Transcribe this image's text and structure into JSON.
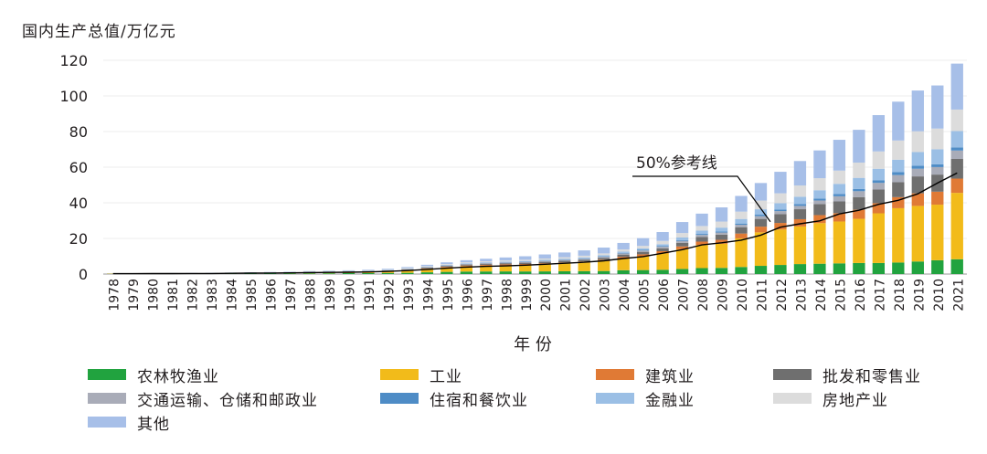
{
  "chart_data": {
    "type": "bar",
    "stacked": true,
    "title": "",
    "ylabel": "国内生产总值/万亿元",
    "xlabel": "年 份",
    "ylim": [
      0,
      120
    ],
    "yticks": [
      0,
      20,
      40,
      60,
      80,
      100,
      120
    ],
    "grid": true,
    "legend_position": "bottom",
    "categories": [
      "1978",
      "1979",
      "1980",
      "1981",
      "1982",
      "1983",
      "1984",
      "1985",
      "1986",
      "1987",
      "1988",
      "1989",
      "1990",
      "1991",
      "1992",
      "1993",
      "1994",
      "1995",
      "1996",
      "1997",
      "1998",
      "1999",
      "2000",
      "2001",
      "2002",
      "2003",
      "2004",
      "2005",
      "2006",
      "2007",
      "2008",
      "2009",
      "2010",
      "2011",
      "2012",
      "2013",
      "2014",
      "2015",
      "2016",
      "2017",
      "2018",
      "2019",
      "2010",
      "2021"
    ],
    "series": [
      {
        "name": "农林牧渔业",
        "color": "#21a33f",
        "values": [
          0.1,
          0.13,
          0.14,
          0.16,
          0.18,
          0.2,
          0.23,
          0.26,
          0.28,
          0.32,
          0.38,
          0.42,
          0.51,
          0.53,
          0.59,
          0.7,
          0.98,
          1.22,
          1.4,
          1.45,
          1.48,
          1.46,
          1.49,
          1.56,
          1.63,
          1.7,
          2.14,
          2.24,
          2.4,
          2.87,
          3.34,
          3.46,
          3.97,
          4.6,
          5.1,
          5.6,
          5.8,
          6.0,
          6.2,
          6.2,
          6.47,
          7.05,
          7.75,
          8.31
        ]
      },
      {
        "name": "工业",
        "color": "#f2bb1a",
        "values": [
          0.16,
          0.18,
          0.2,
          0.21,
          0.22,
          0.24,
          0.28,
          0.34,
          0.39,
          0.46,
          0.58,
          0.65,
          0.69,
          0.81,
          1.03,
          1.45,
          1.95,
          2.46,
          2.91,
          3.24,
          3.4,
          3.61,
          4.0,
          4.35,
          4.75,
          5.5,
          6.53,
          7.71,
          9.13,
          11.05,
          13.01,
          13.51,
          16.07,
          18.8,
          19.9,
          21.1,
          22.8,
          23.5,
          24.8,
          27.9,
          30.5,
          31.2,
          31.2,
          37.26
        ]
      },
      {
        "name": "建筑业",
        "color": "#e07a35",
        "values": [
          0.01,
          0.01,
          0.02,
          0.02,
          0.02,
          0.03,
          0.04,
          0.04,
          0.05,
          0.07,
          0.08,
          0.08,
          0.08,
          0.1,
          0.14,
          0.23,
          0.29,
          0.38,
          0.45,
          0.49,
          0.53,
          0.56,
          0.59,
          0.64,
          0.71,
          0.84,
          1.02,
          1.12,
          1.29,
          1.59,
          1.86,
          2.24,
          2.7,
          3.21,
          3.68,
          4.09,
          4.49,
          4.66,
          5.1,
          5.66,
          6.2,
          7.07,
          7.29,
          8.01
        ]
      },
      {
        "name": "批发和零售业",
        "color": "#6f6f6f",
        "values": [
          0.03,
          0.03,
          0.03,
          0.04,
          0.04,
          0.04,
          0.05,
          0.09,
          0.1,
          0.12,
          0.15,
          0.17,
          0.17,
          0.2,
          0.24,
          0.3,
          0.39,
          0.49,
          0.56,
          0.62,
          0.68,
          0.72,
          0.79,
          0.87,
          0.94,
          1.06,
          1.23,
          1.41,
          1.65,
          2.04,
          2.62,
          2.92,
          3.57,
          4.35,
          4.95,
          5.6,
          6.2,
          6.6,
          7.1,
          7.7,
          8.4,
          9.5,
          9.6,
          11.04
        ]
      },
      {
        "name": "交通运输、仓储和邮政业",
        "color": "#a9acb8",
        "values": [
          0.02,
          0.02,
          0.02,
          0.02,
          0.03,
          0.03,
          0.04,
          0.04,
          0.05,
          0.05,
          0.07,
          0.09,
          0.11,
          0.12,
          0.14,
          0.18,
          0.22,
          0.25,
          0.29,
          0.32,
          0.35,
          0.39,
          0.43,
          0.48,
          0.52,
          0.56,
          0.67,
          0.76,
          0.88,
          1.02,
          1.14,
          1.17,
          1.34,
          1.54,
          1.71,
          1.86,
          2.0,
          2.9,
          3.3,
          3.7,
          4.0,
          4.3,
          4.2,
          4.71
        ]
      },
      {
        "name": "住宿和餐饮业",
        "color": "#4e8cc6",
        "values": [
          0.01,
          0.01,
          0.01,
          0.01,
          0.01,
          0.01,
          0.01,
          0.02,
          0.02,
          0.02,
          0.03,
          0.03,
          0.03,
          0.04,
          0.05,
          0.07,
          0.09,
          0.11,
          0.13,
          0.14,
          0.16,
          0.18,
          0.2,
          0.22,
          0.25,
          0.27,
          0.32,
          0.37,
          0.42,
          0.49,
          0.56,
          0.61,
          0.71,
          0.82,
          0.92,
          1.02,
          1.1,
          1.2,
          1.3,
          1.4,
          1.6,
          1.7,
          1.6,
          1.79
        ]
      },
      {
        "name": "金融业",
        "color": "#9bbfe5",
        "values": [
          0.01,
          0.01,
          0.02,
          0.02,
          0.03,
          0.03,
          0.04,
          0.05,
          0.06,
          0.08,
          0.09,
          0.11,
          0.13,
          0.15,
          0.18,
          0.22,
          0.26,
          0.3,
          0.34,
          0.37,
          0.4,
          0.42,
          0.47,
          0.51,
          0.57,
          0.61,
          0.67,
          0.73,
          0.98,
          1.46,
          1.83,
          2.16,
          2.57,
          3.05,
          3.55,
          4.12,
          4.67,
          5.78,
          6.2,
          6.54,
          7.02,
          7.67,
          8.43,
          9.14
        ]
      },
      {
        "name": "房地产业",
        "color": "#dcdcdc",
        "values": [
          0.01,
          0.01,
          0.02,
          0.02,
          0.02,
          0.03,
          0.03,
          0.04,
          0.05,
          0.06,
          0.07,
          0.08,
          0.11,
          0.12,
          0.17,
          0.26,
          0.3,
          0.4,
          0.48,
          0.54,
          0.63,
          0.68,
          0.75,
          0.84,
          0.93,
          1.05,
          1.24,
          1.46,
          1.83,
          2.51,
          2.6,
          3.39,
          4.12,
          4.88,
          5.52,
          6.34,
          6.75,
          7.42,
          8.57,
          9.72,
          10.78,
          11.64,
          11.6,
          12.08
        ]
      },
      {
        "name": "其他",
        "color": "#a7bfe8",
        "values": [
          0.04,
          0.05,
          0.05,
          0.06,
          0.07,
          0.08,
          0.1,
          0.12,
          0.14,
          0.16,
          0.21,
          0.24,
          0.27,
          0.33,
          0.4,
          0.53,
          0.72,
          0.96,
          1.21,
          1.41,
          1.68,
          1.96,
          2.28,
          2.63,
          2.98,
          3.26,
          3.65,
          4.34,
          5.0,
          6.17,
          6.96,
          7.96,
          8.8,
          9.85,
          12.07,
          13.71,
          15.59,
          17.3,
          18.4,
          20.4,
          21.8,
          22.9,
          24.2,
          25.8
        ]
      }
    ],
    "reference_line": {
      "label": "50%参考线",
      "color": "#000000",
      "values": [
        0.2,
        0.23,
        0.25,
        0.27,
        0.3,
        0.33,
        0.41,
        0.5,
        0.57,
        0.67,
        0.83,
        0.93,
        1.05,
        1.2,
        1.48,
        1.97,
        2.6,
        3.29,
        3.89,
        4.29,
        4.56,
        4.99,
        5.5,
        6.05,
        6.64,
        7.43,
        8.73,
        9.82,
        11.67,
        13.7,
        16.35,
        17.54,
        19.03,
        21.86,
        26.3,
        28.21,
        29.84,
        33.72,
        35.81,
        39.15,
        41.41,
        45.02,
        51.1,
        56.72
      ]
    }
  }
}
